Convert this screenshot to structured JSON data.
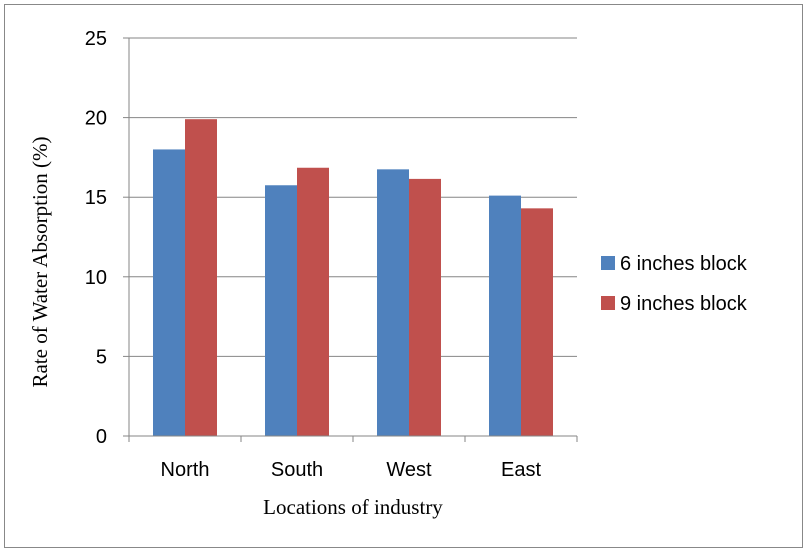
{
  "chart_data": {
    "type": "bar",
    "title": "",
    "xlabel": "Locations of industry",
    "ylabel": "Rate of Water Absorption (%)",
    "categories": [
      "North",
      "South",
      "West",
      "East"
    ],
    "series": [
      {
        "name": "6 inches block",
        "color": "#4f81bd",
        "values": [
          18.0,
          15.75,
          16.75,
          15.1
        ]
      },
      {
        "name": "9 inches block",
        "color": "#c0504d",
        "values": [
          19.9,
          16.85,
          16.15,
          14.3
        ]
      }
    ],
    "ylim": [
      0,
      25
    ],
    "yticks": [
      0,
      5,
      10,
      15,
      20,
      25
    ],
    "grid": true,
    "legend_position": "right"
  }
}
